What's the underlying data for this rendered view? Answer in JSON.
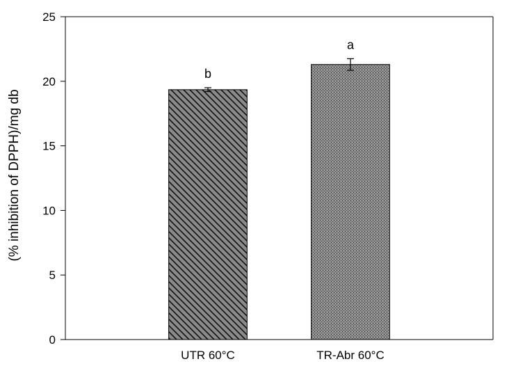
{
  "chart_data": {
    "type": "bar",
    "title": "",
    "xlabel": "",
    "ylabel": "(% inhibition of DPPH)/mg db",
    "ylim": [
      0,
      25
    ],
    "yticks": [
      0,
      5,
      10,
      15,
      20,
      25
    ],
    "grid": false,
    "legend": "none",
    "categories": [
      "UTR 60°C",
      "TR-Abr 60°C"
    ],
    "values": [
      19.35,
      21.3
    ],
    "errors": [
      0.15,
      0.45
    ],
    "significance_labels": [
      "b",
      "a"
    ],
    "fill_patterns": [
      "diagonal-hatch",
      "dotted-stipple"
    ],
    "bar_fill_color": "#8a8a8a",
    "bar_edge_color": "#000000"
  }
}
